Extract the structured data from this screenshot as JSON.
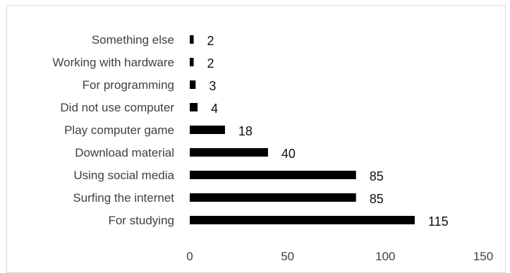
{
  "chart_data": {
    "type": "bar",
    "orientation": "horizontal",
    "title": "",
    "xlabel": "",
    "ylabel": "",
    "categories": [
      "Something else",
      "Working with hardware",
      "For programming",
      "Did not use computer",
      "Play computer game",
      "Download material",
      "Using social media",
      "Surfing the internet",
      "For studying"
    ],
    "values": [
      2,
      2,
      3,
      4,
      18,
      40,
      85,
      85,
      115
    ],
    "xlim": [
      0,
      150
    ],
    "xticks": [
      0,
      50,
      100,
      150
    ],
    "grid": false,
    "legend": "none",
    "data_labels": true,
    "bar_color": "#000000"
  }
}
